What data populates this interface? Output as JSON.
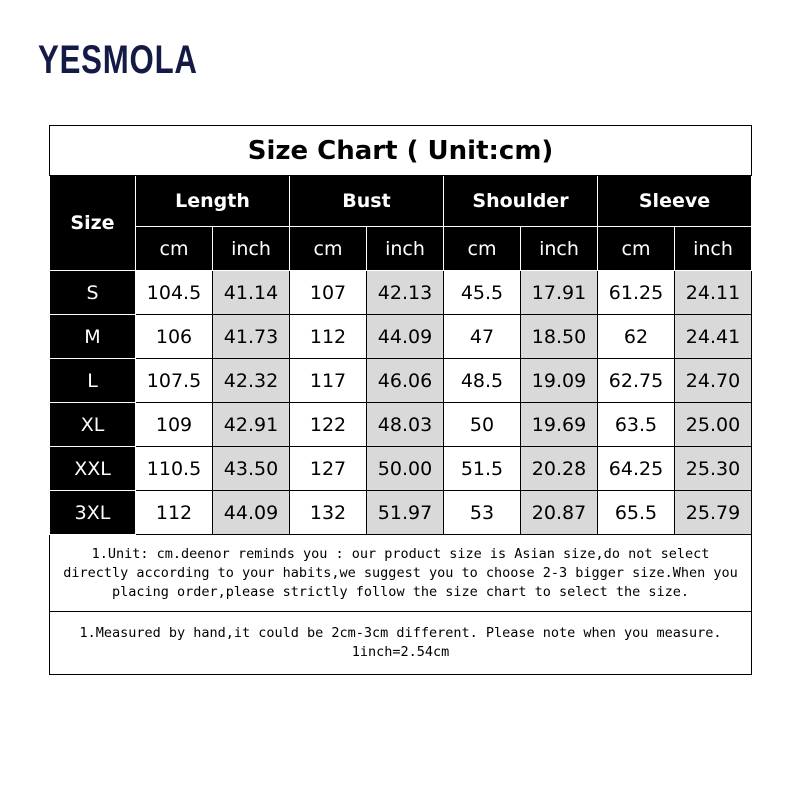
{
  "brand": "YESMOLA",
  "title": "Size Chart ( Unit:cm)",
  "size_header": "Size",
  "groups": [
    "Length",
    "Bust",
    "Shoulder",
    "Sleeve"
  ],
  "units": [
    "cm",
    "inch",
    "cm",
    "inch",
    "cm",
    "inch",
    "cm",
    "inch"
  ],
  "rows": [
    {
      "size": "S",
      "values": [
        "104.5",
        "41.14",
        "107",
        "42.13",
        "45.5",
        "17.91",
        "61.25",
        "24.11"
      ]
    },
    {
      "size": "M",
      "values": [
        "106",
        "41.73",
        "112",
        "44.09",
        "47",
        "18.50",
        "62",
        "24.41"
      ]
    },
    {
      "size": "L",
      "values": [
        "107.5",
        "42.32",
        "117",
        "46.06",
        "48.5",
        "19.09",
        "62.75",
        "24.70"
      ]
    },
    {
      "size": "XL",
      "values": [
        "109",
        "42.91",
        "122",
        "48.03",
        "50",
        "19.69",
        "63.5",
        "25.00"
      ]
    },
    {
      "size": "XXL",
      "values": [
        "110.5",
        "43.50",
        "127",
        "50.00",
        "51.5",
        "20.28",
        "64.25",
        "25.30"
      ]
    },
    {
      "size": "3XL",
      "values": [
        "112",
        "44.09",
        "132",
        "51.97",
        "53",
        "20.87",
        "65.5",
        "25.79"
      ]
    }
  ],
  "notes": [
    "1.Unit: cm.deenor reminds you : our product size is Asian size,do not select directly according to your habits,we suggest you to choose 2-3 bigger size.When you placing order,please strictly follow the size chart to select the size.",
    "1.Measured by hand,it could be 2cm-3cm different. Please note when you measure. 1inch=2.54cm"
  ],
  "colors": {
    "brand": "#141a46",
    "header_bg": "#000000",
    "inch_bg": "#d9d9d9"
  }
}
